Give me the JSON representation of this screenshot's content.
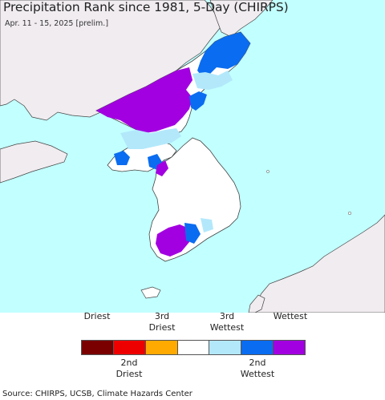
{
  "title": "Precipitation Rank since 1981, 5-Day (CHIRPS)",
  "subtitle": "Apr. 11 - 15, 2025 [prelim.]",
  "legend": {
    "categories": [
      {
        "label": "Driest",
        "color": "#7a0000"
      },
      {
        "label": "2nd Driest",
        "color": "#ee0000"
      },
      {
        "label": "3rd Driest",
        "color": "#ffaa00"
      },
      {
        "label": "",
        "color": "#ffffff"
      },
      {
        "label": "3rd Wettest",
        "color": "#b3e8fb"
      },
      {
        "label": "2nd Wettest",
        "color": "#0a6cf0"
      },
      {
        "label": "Wettest",
        "color": "#a200e0"
      }
    ],
    "top_labels": {
      "driest": "Driest",
      "third_driest": "3rd\nDriest",
      "third_wettest": "3rd\nWettest",
      "wettest": "Wettest"
    },
    "bottom_labels": {
      "second_driest": "2nd\nDriest",
      "second_wettest": "2nd\nWettest"
    }
  },
  "map_colors": {
    "ocean": "#c2ffff",
    "land_other": "#f0ecf0",
    "land_korea": "#ffffff",
    "border": "#444444"
  },
  "source": "Source: CHIRPS, UCSB, Climate Hazards Center"
}
